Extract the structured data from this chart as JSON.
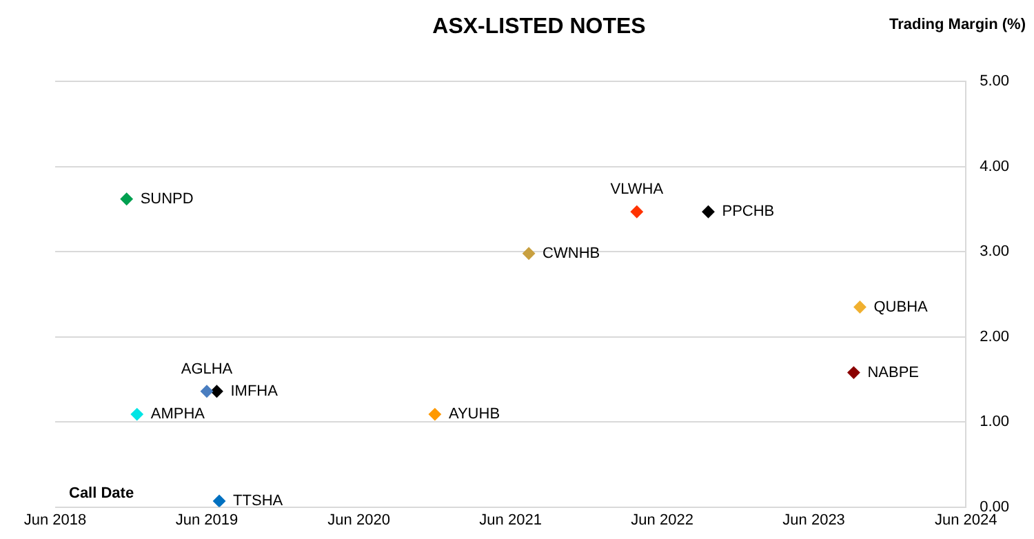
{
  "chart_data": {
    "type": "scatter",
    "title": "ASX-LISTED NOTES",
    "xlabel": "Call Date",
    "ylabel": "Trading Margin (%)",
    "xlim": [
      "2018-06",
      "2024-06"
    ],
    "xticks": [
      {
        "value": "2018-06",
        "label": "Jun 2018"
      },
      {
        "value": "2019-06",
        "label": "Jun 2019"
      },
      {
        "value": "2020-06",
        "label": "Jun 2020"
      },
      {
        "value": "2021-06",
        "label": "Jun 2021"
      },
      {
        "value": "2022-06",
        "label": "Jun 2022"
      },
      {
        "value": "2023-06",
        "label": "Jun 2023"
      },
      {
        "value": "2024-06",
        "label": "Jun 2024"
      }
    ],
    "ylim": [
      0,
      5
    ],
    "yticks": [
      {
        "value": 0,
        "label": "0.00"
      },
      {
        "value": 1,
        "label": "1.00"
      },
      {
        "value": 2,
        "label": "2.00"
      },
      {
        "value": 3,
        "label": "3.00"
      },
      {
        "value": 4,
        "label": "4.00"
      },
      {
        "value": 5,
        "label": "5.00"
      }
    ],
    "grid": "y",
    "legend": false,
    "marker": "diamond",
    "series": [
      {
        "name": "SUNPD",
        "color": "#00a050",
        "x": [
          "2018-11-20"
        ],
        "values": [
          3.62
        ]
      },
      {
        "name": "AMPHA",
        "color": "#00e5e5",
        "x": [
          "2018-12-15"
        ],
        "values": [
          1.09
        ]
      },
      {
        "name": "AGLHA",
        "color": "#4a7ec0",
        "x": [
          "2019-06-01"
        ],
        "values": [
          1.36
        ]
      },
      {
        "name": "IMFHA",
        "color": "#000000",
        "x": [
          "2019-06-25"
        ],
        "values": [
          1.36
        ]
      },
      {
        "name": "TTSHA",
        "color": "#0070c0",
        "x": [
          "2019-07-01"
        ],
        "values": [
          0.07
        ]
      },
      {
        "name": "AYUHB",
        "color": "#ff9900",
        "x": [
          "2020-12-01"
        ],
        "values": [
          1.09
        ]
      },
      {
        "name": "CWNHB",
        "color": "#c8a040",
        "x": [
          "2021-07-15"
        ],
        "values": [
          2.98
        ]
      },
      {
        "name": "VLWHA",
        "color": "#ff3300",
        "x": [
          "2022-04-01"
        ],
        "values": [
          3.47
        ]
      },
      {
        "name": "PPCHB",
        "color": "#000000",
        "x": [
          "2022-09-20"
        ],
        "values": [
          3.47
        ]
      },
      {
        "name": "QUBHA",
        "color": "#f0b030",
        "x": [
          "2023-09-20"
        ],
        "values": [
          2.35
        ]
      },
      {
        "name": "NABPE",
        "color": "#8b0000",
        "x": [
          "2023-09-05"
        ],
        "values": [
          1.58
        ]
      }
    ]
  }
}
